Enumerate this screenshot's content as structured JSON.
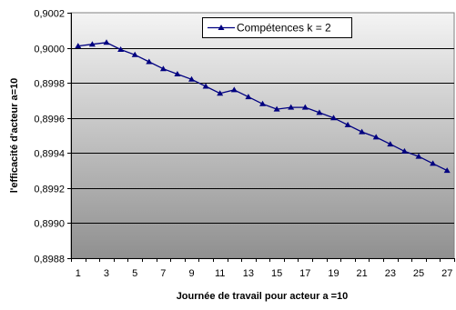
{
  "chart_data": {
    "type": "line",
    "title": "",
    "xlabel": "Journée de travail pour acteur a =10",
    "ylabel": "l'efficacité d'acteur a=10",
    "x": [
      1,
      2,
      3,
      4,
      5,
      6,
      7,
      8,
      9,
      10,
      11,
      12,
      13,
      14,
      15,
      16,
      17,
      18,
      19,
      20,
      21,
      22,
      23,
      24,
      25,
      26,
      27
    ],
    "x_tick_labels": [
      "1",
      "3",
      "5",
      "7",
      "9",
      "11",
      "13",
      "15",
      "17",
      "19",
      "21",
      "23",
      "25",
      "27"
    ],
    "y_tick_labels": [
      "0,8988",
      "0,8990",
      "0,8992",
      "0,8994",
      "0,8996",
      "0,8998",
      "0,9000",
      "0,9002"
    ],
    "y_ticks": [
      0.8988,
      0.899,
      0.8992,
      0.8994,
      0.8996,
      0.8998,
      0.9,
      0.9002
    ],
    "xlim": [
      0.5,
      27.5
    ],
    "ylim": [
      0.8988,
      0.9002
    ],
    "grid": true,
    "legend_position": "top-right",
    "series": [
      {
        "name": "Compétences k = 2",
        "marker": "triangle",
        "color": "#000080",
        "values": [
          0.90001,
          0.90002,
          0.90003,
          0.89999,
          0.89996,
          0.89992,
          0.89988,
          0.89985,
          0.89982,
          0.89978,
          0.89974,
          0.89976,
          0.89972,
          0.89968,
          0.89965,
          0.89966,
          0.89966,
          0.89963,
          0.8996,
          0.89956,
          0.89952,
          0.89949,
          0.89945,
          0.89941,
          0.89938,
          0.89934,
          0.8993
        ]
      }
    ]
  },
  "colors": {
    "plot_top": "#f4f4f4",
    "plot_bottom": "#909090",
    "gridline": "#000000",
    "series": "#000080",
    "legend_bg": "#ffffff"
  }
}
